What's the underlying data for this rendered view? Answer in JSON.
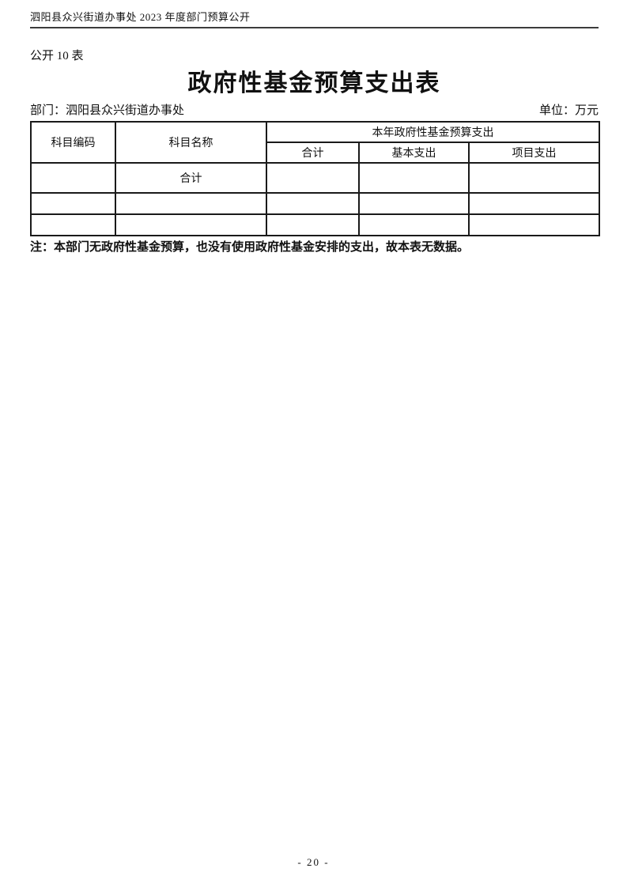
{
  "page": {
    "header": "泗阳县众兴街道办事处 2023 年度部门预算公开",
    "table_label": "公开 10 表",
    "title": "政府性基金预算支出表",
    "department": "部门：泗阳县众兴街道办事处",
    "unit": "单位：万元",
    "note": "注：本部门无政府性基金预算，也没有使用政府性基金安排的支出，故本表无数据。",
    "page_number": "- 20 -"
  },
  "table": {
    "headers": {
      "col_code": "科目编码",
      "col_name": "科目名称",
      "group": "本年政府性基金预算支出",
      "sub_total": "合计",
      "sub_basic": "基本支出",
      "sub_project": "项目支出"
    },
    "rows": [
      {
        "code": "",
        "name": "合计",
        "total": "",
        "basic": "",
        "project": ""
      },
      {
        "code": "",
        "name": "",
        "total": "",
        "basic": "",
        "project": ""
      },
      {
        "code": "",
        "name": "",
        "total": "",
        "basic": "",
        "project": ""
      }
    ]
  }
}
